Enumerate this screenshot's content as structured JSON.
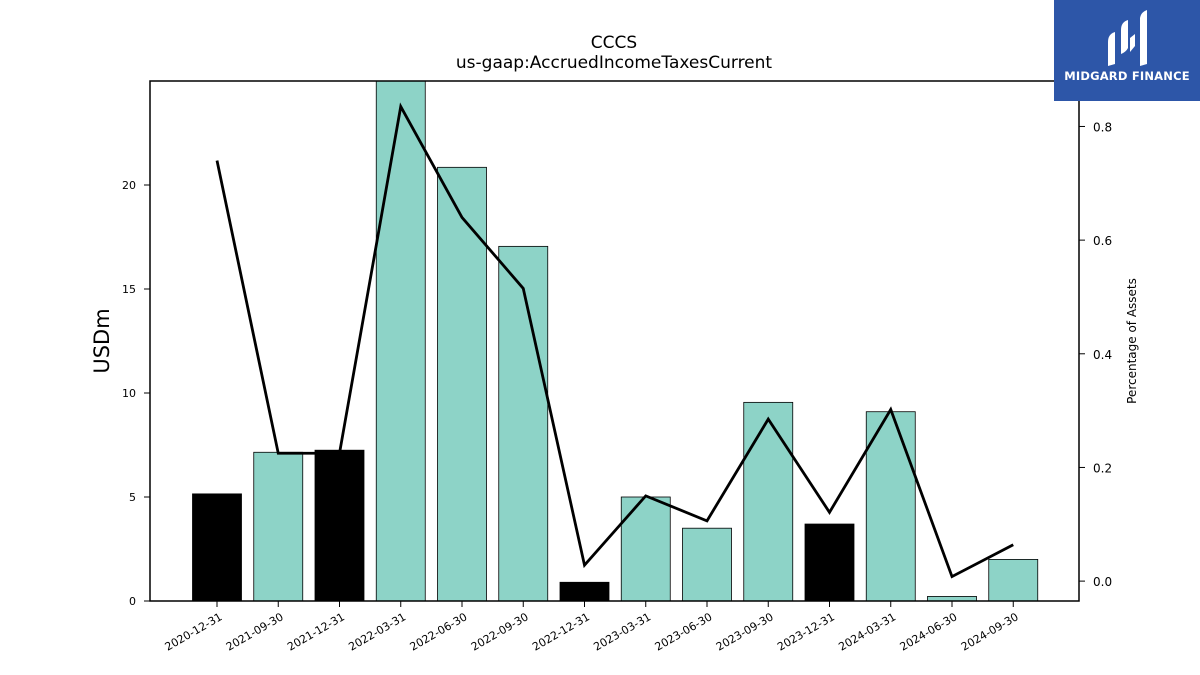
{
  "logo": {
    "text": "MIDGARD FINANCE",
    "icon": "midgard-m-logo-icon",
    "bg_color": "#2d56a8"
  },
  "chart_data": {
    "type": "bar",
    "title": "CCCS",
    "subtitle": "us-gaap:AccruedIncomeTaxesCurrent",
    "ylabel": "USDm",
    "y2label": "Percentage of Assets",
    "ylim": [
      0,
      25
    ],
    "y2lim": [
      -0.035,
      0.88
    ],
    "yticks": [
      0,
      5,
      10,
      15,
      20
    ],
    "y2ticks": [
      0.0,
      0.2,
      0.4,
      0.6,
      0.8
    ],
    "y2tick_labels": [
      "0.0",
      "0.2",
      "0.4",
      "0.6",
      "0.8"
    ],
    "categories": [
      "2020-12-31",
      "2021-09-30",
      "2021-12-31",
      "2022-03-31",
      "2022-06-30",
      "2022-09-30",
      "2022-12-31",
      "2023-03-31",
      "2023-06-30",
      "2023-09-30",
      "2023-12-31",
      "2024-03-31",
      "2024-06-30",
      "2024-09-30"
    ],
    "series": [
      {
        "type": "bar",
        "axis": "left",
        "values": [
          5.15,
          7.15,
          7.25,
          25.1,
          20.85,
          17.05,
          0.9,
          5.0,
          3.5,
          9.55,
          3.7,
          9.1,
          0.22,
          2.0
        ],
        "colors": [
          "#000000",
          "#8dd3c7",
          "#000000",
          "#8dd3c7",
          "#8dd3c7",
          "#8dd3c7",
          "#000000",
          "#8dd3c7",
          "#8dd3c7",
          "#8dd3c7",
          "#000000",
          "#8dd3c7",
          "#8dd3c7",
          "#8dd3c7"
        ]
      },
      {
        "type": "line",
        "axis": "right",
        "color": "#000000",
        "values": [
          0.74,
          0.225,
          0.225,
          0.835,
          0.64,
          0.515,
          0.028,
          0.15,
          0.106,
          0.285,
          0.121,
          0.302,
          0.008,
          0.064
        ]
      }
    ],
    "grid": false,
    "legend": "none"
  }
}
